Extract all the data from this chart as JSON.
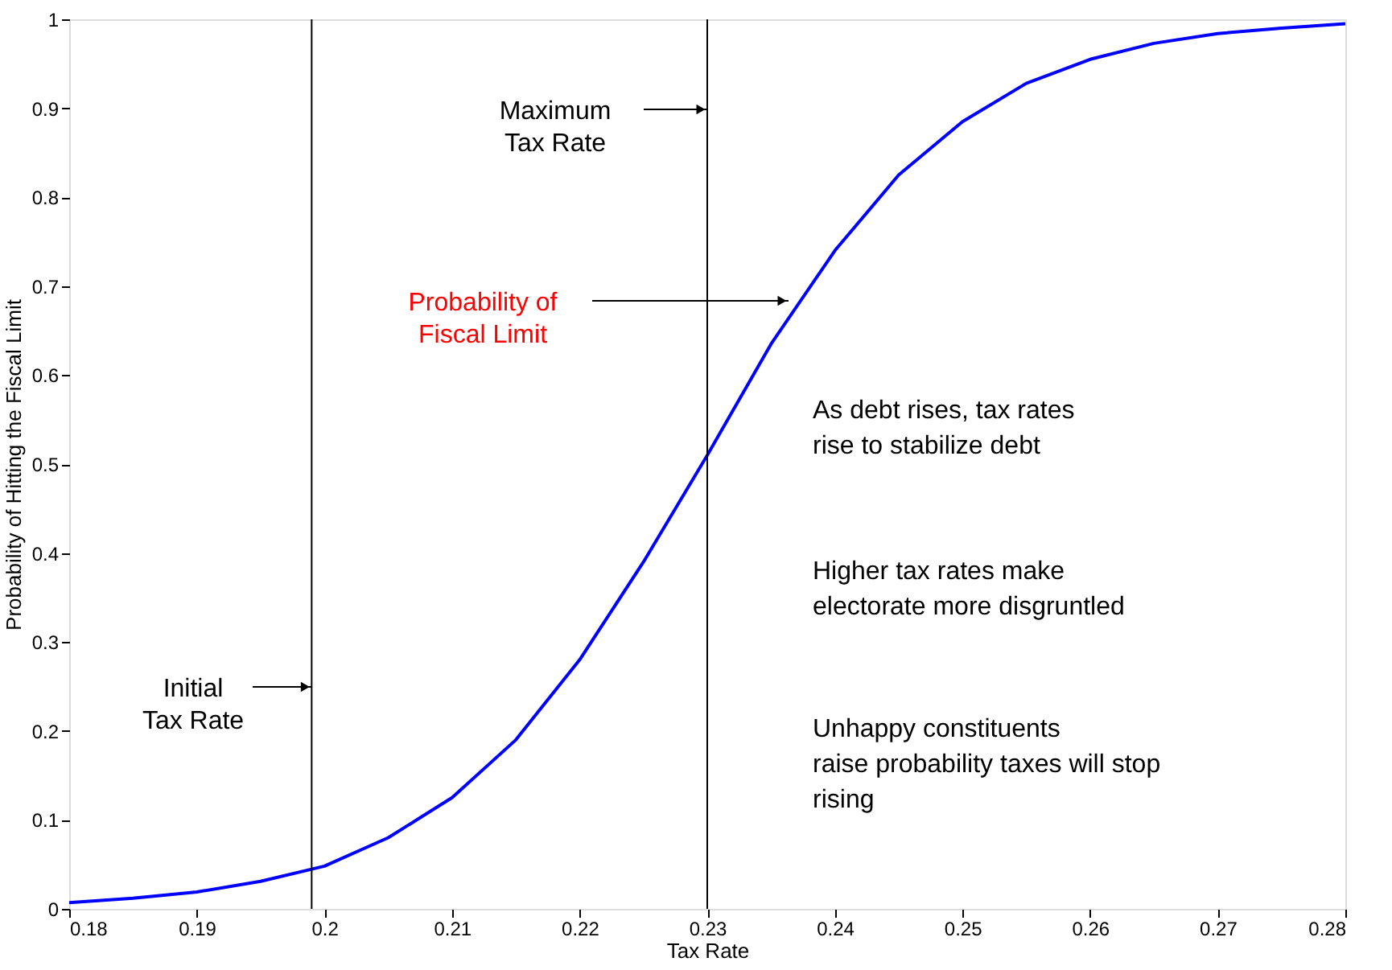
{
  "chart_data": {
    "type": "line",
    "xlabel": "Tax Rate",
    "ylabel": "Probability of Hitting the Fiscal Limit",
    "x": [
      0.18,
      0.185,
      0.19,
      0.195,
      0.2,
      0.205,
      0.21,
      0.215,
      0.22,
      0.225,
      0.23,
      0.235,
      0.24,
      0.245,
      0.25,
      0.255,
      0.26,
      0.265,
      0.27,
      0.275,
      0.28
    ],
    "series": [
      {
        "color": "#0000ff",
        "values": [
          0.007,
          0.012,
          0.019,
          0.031,
          0.048,
          0.08,
          0.125,
          0.19,
          0.28,
          0.39,
          0.51,
          0.635,
          0.74,
          0.825,
          0.885,
          0.928,
          0.955,
          0.973,
          0.984,
          0.99,
          0.995
        ]
      }
    ],
    "xlim": [
      0.18,
      0.28
    ],
    "ylim": [
      0,
      1
    ],
    "xticks": [
      0.18,
      0.19,
      0.2,
      0.21,
      0.22,
      0.23,
      0.24,
      0.25,
      0.26,
      0.27,
      0.28
    ],
    "yticks": [
      0,
      0.1,
      0.2,
      0.3,
      0.4,
      0.5,
      0.6,
      0.7,
      0.8,
      0.9,
      1
    ],
    "ref_lines": [
      {
        "axis": "x",
        "value": 0.199,
        "label": "Initial\nTax Rate",
        "color": "#000000"
      },
      {
        "axis": "x",
        "value": 0.23,
        "label": "Maximum\nTax Rate",
        "color": "#000000"
      }
    ],
    "annotations": [
      "Probability of\nFiscal Limit",
      "As debt rises, tax rates\nrise to stabilize debt",
      "Higher tax rates make\nelectorate more disgruntled",
      "Unhappy constituents\nraise probability taxes will stop\nrising"
    ],
    "grid": false,
    "marker": "none",
    "line_style": "solid"
  }
}
